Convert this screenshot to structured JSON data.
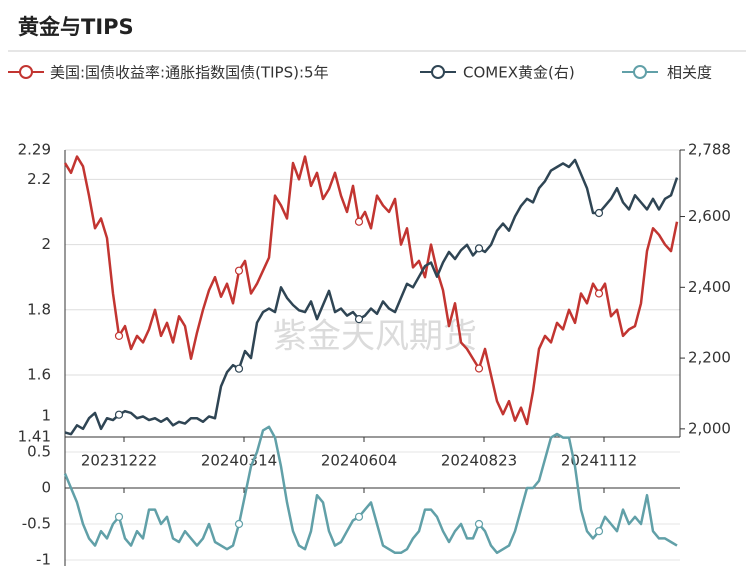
{
  "chart_data": [
    {
      "type": "line",
      "title": "黄金与TIPS",
      "watermark": "紫金天风期货",
      "categories": [
        null,
        null,
        null,
        null,
        null,
        null,
        null,
        null,
        null,
        "20231222",
        null,
        null,
        null,
        null,
        null,
        null,
        null,
        null,
        null,
        null,
        null,
        null,
        null,
        null,
        null,
        null,
        null,
        null,
        null,
        "20240314",
        null,
        null,
        null,
        null,
        null,
        null,
        null,
        null,
        null,
        null,
        null,
        null,
        null,
        null,
        null,
        null,
        null,
        null,
        null,
        "20240604",
        null,
        null,
        null,
        null,
        null,
        null,
        null,
        null,
        null,
        null,
        null,
        null,
        null,
        null,
        null,
        null,
        null,
        null,
        null,
        "20240823",
        null,
        null,
        null,
        null,
        null,
        null,
        null,
        null,
        null,
        null,
        null,
        null,
        null,
        null,
        null,
        null,
        null,
        null,
        null,
        "20241112",
        null,
        null,
        null,
        null,
        null,
        null,
        null,
        null,
        null,
        null,
        null,
        null,
        null
      ],
      "ylim": [
        1.41,
        2.29
      ],
      "yticks": [
        1.41,
        1.6,
        1.8,
        2,
        2.2,
        2.29
      ],
      "y2lim": [
        1977,
        2788
      ],
      "y2ticks": [
        {
          "value": 2000,
          "label": "2,000"
        },
        {
          "value": 2200,
          "label": "2,200"
        },
        {
          "value": 2400,
          "label": "2,400"
        },
        {
          "value": 2600,
          "label": "2,600"
        },
        {
          "value": 2788,
          "label": "2,788"
        }
      ],
      "grid": true,
      "series": [
        {
          "name": "美国:国债收益率:通胀指数国债(TIPS):5年",
          "color": "#c23531",
          "values": [
            2.25,
            2.22,
            2.27,
            2.24,
            2.15,
            2.05,
            2.08,
            2.02,
            1.85,
            1.72,
            1.75,
            1.68,
            1.72,
            1.7,
            1.74,
            1.8,
            1.72,
            1.76,
            1.7,
            1.78,
            1.75,
            1.65,
            1.73,
            1.8,
            1.86,
            1.9,
            1.84,
            1.88,
            1.82,
            1.92,
            1.95,
            1.85,
            1.88,
            1.92,
            1.96,
            2.15,
            2.12,
            2.08,
            2.25,
            2.2,
            2.27,
            2.18,
            2.22,
            2.14,
            2.17,
            2.22,
            2.15,
            2.1,
            2.18,
            2.07,
            2.1,
            2.05,
            2.15,
            2.12,
            2.1,
            2.14,
            2.0,
            2.05,
            1.93,
            1.95,
            1.9,
            2.0,
            1.92,
            1.86,
            1.75,
            1.82,
            1.7,
            1.68,
            1.65,
            1.62,
            1.68,
            1.6,
            1.52,
            1.48,
            1.52,
            1.46,
            1.5,
            1.45,
            1.55,
            1.68,
            1.72,
            1.7,
            1.76,
            1.74,
            1.8,
            1.76,
            1.85,
            1.82,
            1.88,
            1.85,
            1.88,
            1.78,
            1.8,
            1.72,
            1.74,
            1.75,
            1.82,
            1.98,
            2.05,
            2.03,
            2.0,
            1.98,
            2.07
          ]
        },
        {
          "name": "COMEX黄金(右)",
          "color": "#2f4554",
          "axis": "y2",
          "values": [
            1990,
            1985,
            2010,
            2000,
            2030,
            2045,
            2000,
            2030,
            2025,
            2040,
            2050,
            2045,
            2030,
            2035,
            2025,
            2030,
            2020,
            2030,
            2010,
            2020,
            2015,
            2030,
            2030,
            2020,
            2035,
            2030,
            2120,
            2160,
            2180,
            2170,
            2220,
            2200,
            2300,
            2330,
            2340,
            2330,
            2400,
            2370,
            2350,
            2335,
            2330,
            2360,
            2310,
            2350,
            2390,
            2330,
            2340,
            2320,
            2330,
            2310,
            2320,
            2340,
            2325,
            2360,
            2340,
            2330,
            2370,
            2410,
            2400,
            2430,
            2460,
            2470,
            2430,
            2470,
            2500,
            2480,
            2505,
            2520,
            2490,
            2510,
            2500,
            2520,
            2560,
            2580,
            2560,
            2600,
            2630,
            2650,
            2640,
            2680,
            2700,
            2730,
            2740,
            2750,
            2740,
            2760,
            2720,
            2680,
            2610,
            2610,
            2630,
            2650,
            2680,
            2640,
            2620,
            2660,
            2640,
            2620,
            2650,
            2620,
            2650,
            2660,
            2710
          ]
        }
      ]
    },
    {
      "type": "line",
      "ylim": [
        -1,
        1
      ],
      "yticks": [
        -1,
        -0.5,
        0,
        0.5,
        1
      ],
      "series": [
        {
          "name": "相关度",
          "color": "#61a0a8",
          "values": [
            0.2,
            0.0,
            -0.2,
            -0.5,
            -0.7,
            -0.8,
            -0.6,
            -0.7,
            -0.5,
            -0.4,
            -0.7,
            -0.8,
            -0.6,
            -0.7,
            -0.3,
            -0.3,
            -0.5,
            -0.4,
            -0.7,
            -0.75,
            -0.6,
            -0.7,
            -0.8,
            -0.7,
            -0.5,
            -0.75,
            -0.8,
            -0.85,
            -0.8,
            -0.5,
            -0.1,
            0.3,
            0.5,
            0.8,
            0.85,
            0.7,
            0.3,
            -0.2,
            -0.6,
            -0.8,
            -0.85,
            -0.6,
            -0.1,
            -0.2,
            -0.6,
            -0.8,
            -0.75,
            -0.6,
            -0.45,
            -0.4,
            -0.3,
            -0.2,
            -0.5,
            -0.8,
            -0.85,
            -0.9,
            -0.9,
            -0.85,
            -0.7,
            -0.6,
            -0.3,
            -0.3,
            -0.4,
            -0.6,
            -0.75,
            -0.6,
            -0.5,
            -0.7,
            -0.7,
            -0.5,
            -0.6,
            -0.8,
            -0.9,
            -0.85,
            -0.8,
            -0.6,
            -0.3,
            0.0,
            0.0,
            0.1,
            0.4,
            0.7,
            0.75,
            0.7,
            0.7,
            0.3,
            -0.3,
            -0.6,
            -0.7,
            -0.6,
            -0.4,
            -0.5,
            -0.6,
            -0.3,
            -0.5,
            -0.4,
            -0.5,
            -0.1,
            -0.6,
            -0.7,
            -0.7,
            -0.75,
            -0.8
          ]
        }
      ]
    }
  ]
}
